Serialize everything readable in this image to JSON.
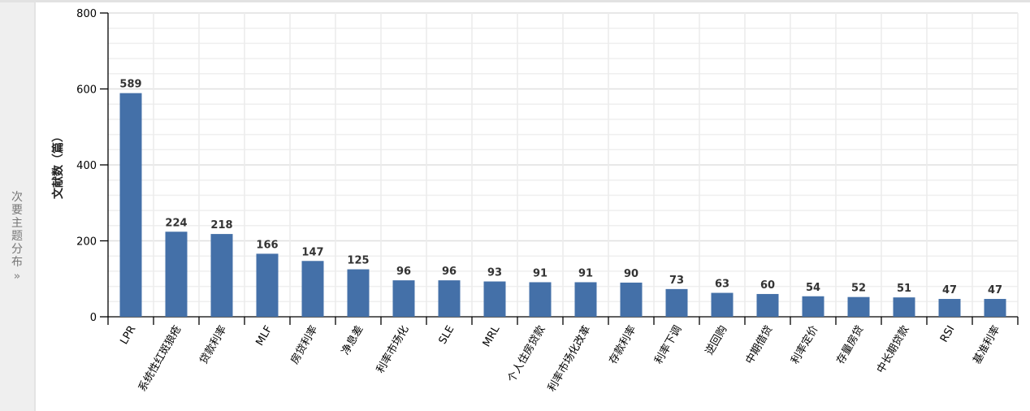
{
  "sidebar": {
    "label": "次要主题分布",
    "arrow_icon": "double-chevron-right-icon"
  },
  "chart_data": {
    "type": "bar",
    "title": "",
    "xlabel": "",
    "ylabel": "文献数（篇）",
    "ylim": [
      0,
      800
    ],
    "yticks": [
      0,
      200,
      400,
      600,
      800
    ],
    "grid": true,
    "bar_color": "#4470a8",
    "categories": [
      "LPR",
      "系统性红斑狼疮",
      "贷款利率",
      "MLF",
      "房贷利率",
      "净息差",
      "利率市场化",
      "SLE",
      "MRL",
      "个人住房贷款",
      "利率市场化改革",
      "存款利率",
      "利率下调",
      "逆回购",
      "中期借贷",
      "利率定价",
      "存量房贷",
      "中长期贷款",
      "RSI",
      "基准利率"
    ],
    "values": [
      589,
      224,
      218,
      166,
      147,
      125,
      96,
      96,
      93,
      91,
      91,
      90,
      73,
      63,
      60,
      54,
      52,
      51,
      47,
      47
    ]
  }
}
